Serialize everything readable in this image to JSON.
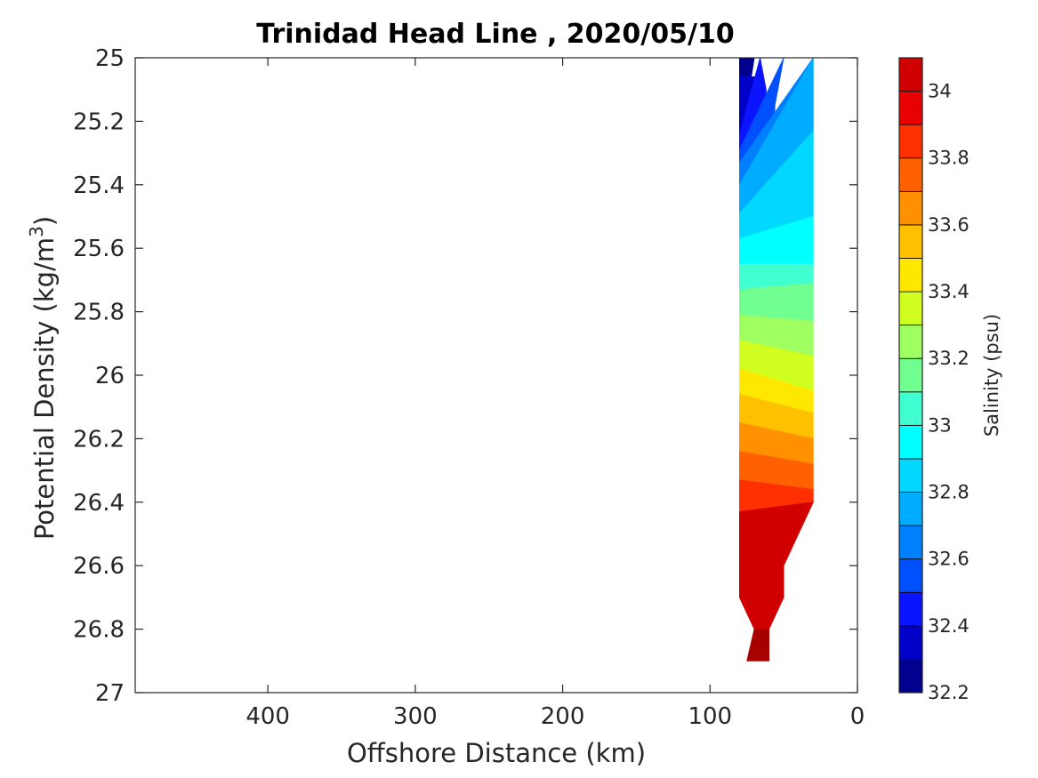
{
  "chart_data": {
    "type": "contour",
    "title": "Trinidad Head Line , 2020/05/10",
    "xlabel": "Offshore Distance (km)",
    "ylabel_main": "Potential Density (kg/m",
    "ylabel_sup": "3",
    "ylabel_close": ")",
    "xlim": [
      490,
      0
    ],
    "ylim": [
      25,
      27
    ],
    "x_reversed": true,
    "y_reversed": true,
    "x_ticks": [
      400,
      300,
      200,
      100,
      0
    ],
    "x_tick_labels": [
      "400",
      "300",
      "200",
      "100",
      "0"
    ],
    "y_ticks": [
      25,
      25.2,
      25.4,
      25.6,
      25.8,
      26,
      26.2,
      26.4,
      26.6,
      26.8,
      27
    ],
    "y_tick_labels": [
      "25",
      "25.2",
      "25.4",
      "25.6",
      "25.8",
      "26",
      "26.2",
      "26.4",
      "26.6",
      "26.8",
      "27"
    ],
    "colorbar": {
      "label": "Salinity (psu)",
      "min": 32.2,
      "max": 34.1,
      "ticks": [
        32.2,
        32.4,
        32.6,
        32.8,
        33,
        33.2,
        33.4,
        33.6,
        33.8,
        34
      ],
      "tick_labels": [
        "32.2",
        "32.4",
        "32.6",
        "32.8",
        "33",
        "33.2",
        "33.4",
        "33.6",
        "33.8",
        "34"
      ],
      "levels": [
        32.2,
        32.3,
        32.4,
        32.5,
        32.6,
        32.7,
        32.8,
        32.9,
        33.0,
        33.1,
        33.2,
        33.3,
        33.4,
        33.5,
        33.6,
        33.7,
        33.8,
        33.9,
        34.0,
        34.1
      ],
      "colors": [
        "#00008f",
        "#0000c8",
        "#0a14ff",
        "#0050ff",
        "#0080ff",
        "#00acff",
        "#00d8ff",
        "#00ffff",
        "#40ffd0",
        "#70ff90",
        "#a0ff60",
        "#d0ff20",
        "#ffe800",
        "#ffc000",
        "#ff9000",
        "#ff6000",
        "#ff3000",
        "#e80000",
        "#d00000",
        "#a80000"
      ]
    },
    "bands": [
      {
        "level": 32.2,
        "left": [
          [
            80,
            25.0
          ],
          [
            80,
            25.06
          ]
        ],
        "right": [
          [
            72,
            25.06
          ],
          [
            70,
            25.0
          ]
        ]
      },
      {
        "level": 32.3,
        "left": [
          [
            80,
            25.06
          ],
          [
            80,
            25.24
          ]
        ],
        "right": [
          [
            66,
            25.24
          ],
          [
            64,
            25.1
          ],
          [
            68,
            25.06
          ]
        ]
      },
      {
        "level": 32.4,
        "left": [
          [
            80,
            25.24
          ],
          [
            80,
            25.29
          ]
        ],
        "right": [
          [
            62,
            25.29
          ],
          [
            62,
            25.1
          ],
          [
            66,
            25.0
          ]
        ]
      },
      {
        "level": 32.5,
        "left": [
          [
            80,
            25.29
          ],
          [
            80,
            25.33
          ]
        ],
        "right": [
          [
            57,
            25.33
          ],
          [
            56,
            25.15
          ],
          [
            50,
            25.0
          ]
        ]
      },
      {
        "level": 32.6,
        "left": [
          [
            80,
            25.33
          ],
          [
            80,
            25.4
          ]
        ],
        "right": [
          [
            50,
            25.4
          ],
          [
            45,
            25.2
          ],
          [
            30,
            25.0
          ]
        ]
      },
      {
        "level": 32.7,
        "left": [
          [
            80,
            25.4
          ],
          [
            80,
            25.49
          ]
        ],
        "right": [
          [
            44,
            25.49
          ],
          [
            30,
            25.23
          ],
          [
            30,
            25.0
          ]
        ]
      },
      {
        "level": 32.8,
        "left": [
          [
            80,
            25.49
          ],
          [
            80,
            25.57
          ]
        ],
        "right": [
          [
            36,
            25.57
          ],
          [
            30,
            25.5
          ],
          [
            30,
            25.23
          ]
        ]
      },
      {
        "level": 32.9,
        "left": [
          [
            80,
            25.57
          ],
          [
            80,
            25.65
          ]
        ],
        "right": [
          [
            30,
            25.65
          ],
          [
            30,
            25.5
          ]
        ]
      },
      {
        "level": 33.0,
        "left": [
          [
            80,
            25.65
          ],
          [
            80,
            25.73
          ]
        ],
        "right": [
          [
            30,
            25.71
          ],
          [
            30,
            25.65
          ]
        ]
      },
      {
        "level": 33.1,
        "left": [
          [
            80,
            25.73
          ],
          [
            80,
            25.81
          ]
        ],
        "right": [
          [
            30,
            25.83
          ],
          [
            30,
            25.71
          ]
        ]
      },
      {
        "level": 33.2,
        "left": [
          [
            80,
            25.81
          ],
          [
            80,
            25.89
          ]
        ],
        "right": [
          [
            30,
            25.94
          ],
          [
            30,
            25.83
          ]
        ]
      },
      {
        "level": 33.3,
        "left": [
          [
            80,
            25.89
          ],
          [
            80,
            25.98
          ]
        ],
        "right": [
          [
            30,
            26.05
          ],
          [
            30,
            25.94
          ]
        ]
      },
      {
        "level": 33.4,
        "left": [
          [
            80,
            25.98
          ],
          [
            80,
            26.06
          ]
        ],
        "right": [
          [
            30,
            26.12
          ],
          [
            30,
            26.05
          ]
        ]
      },
      {
        "level": 33.5,
        "left": [
          [
            80,
            26.06
          ],
          [
            80,
            26.15
          ]
        ],
        "right": [
          [
            30,
            26.2
          ],
          [
            30,
            26.12
          ]
        ]
      },
      {
        "level": 33.6,
        "left": [
          [
            80,
            26.15
          ],
          [
            80,
            26.24
          ]
        ],
        "right": [
          [
            30,
            26.28
          ],
          [
            30,
            26.2
          ]
        ]
      },
      {
        "level": 33.7,
        "left": [
          [
            80,
            26.24
          ],
          [
            80,
            26.33
          ]
        ],
        "right": [
          [
            30,
            26.36
          ],
          [
            30,
            26.28
          ]
        ]
      },
      {
        "level": 33.8,
        "left": [
          [
            80,
            26.33
          ],
          [
            80,
            26.43
          ]
        ],
        "right": [
          [
            30,
            26.4
          ],
          [
            30,
            26.36
          ]
        ]
      },
      {
        "level": 34.0,
        "left": [
          [
            80,
            26.43
          ],
          [
            80,
            26.7
          ],
          [
            70,
            26.8
          ]
        ],
        "right": [
          [
            60,
            26.8
          ],
          [
            50,
            26.7
          ],
          [
            50,
            26.6
          ],
          [
            30,
            26.4
          ]
        ]
      },
      {
        "level": 34.1,
        "left": [
          [
            70,
            26.8
          ],
          [
            75,
            26.9
          ]
        ],
        "right": [
          [
            60,
            26.9
          ],
          [
            60,
            26.8
          ]
        ]
      }
    ]
  }
}
